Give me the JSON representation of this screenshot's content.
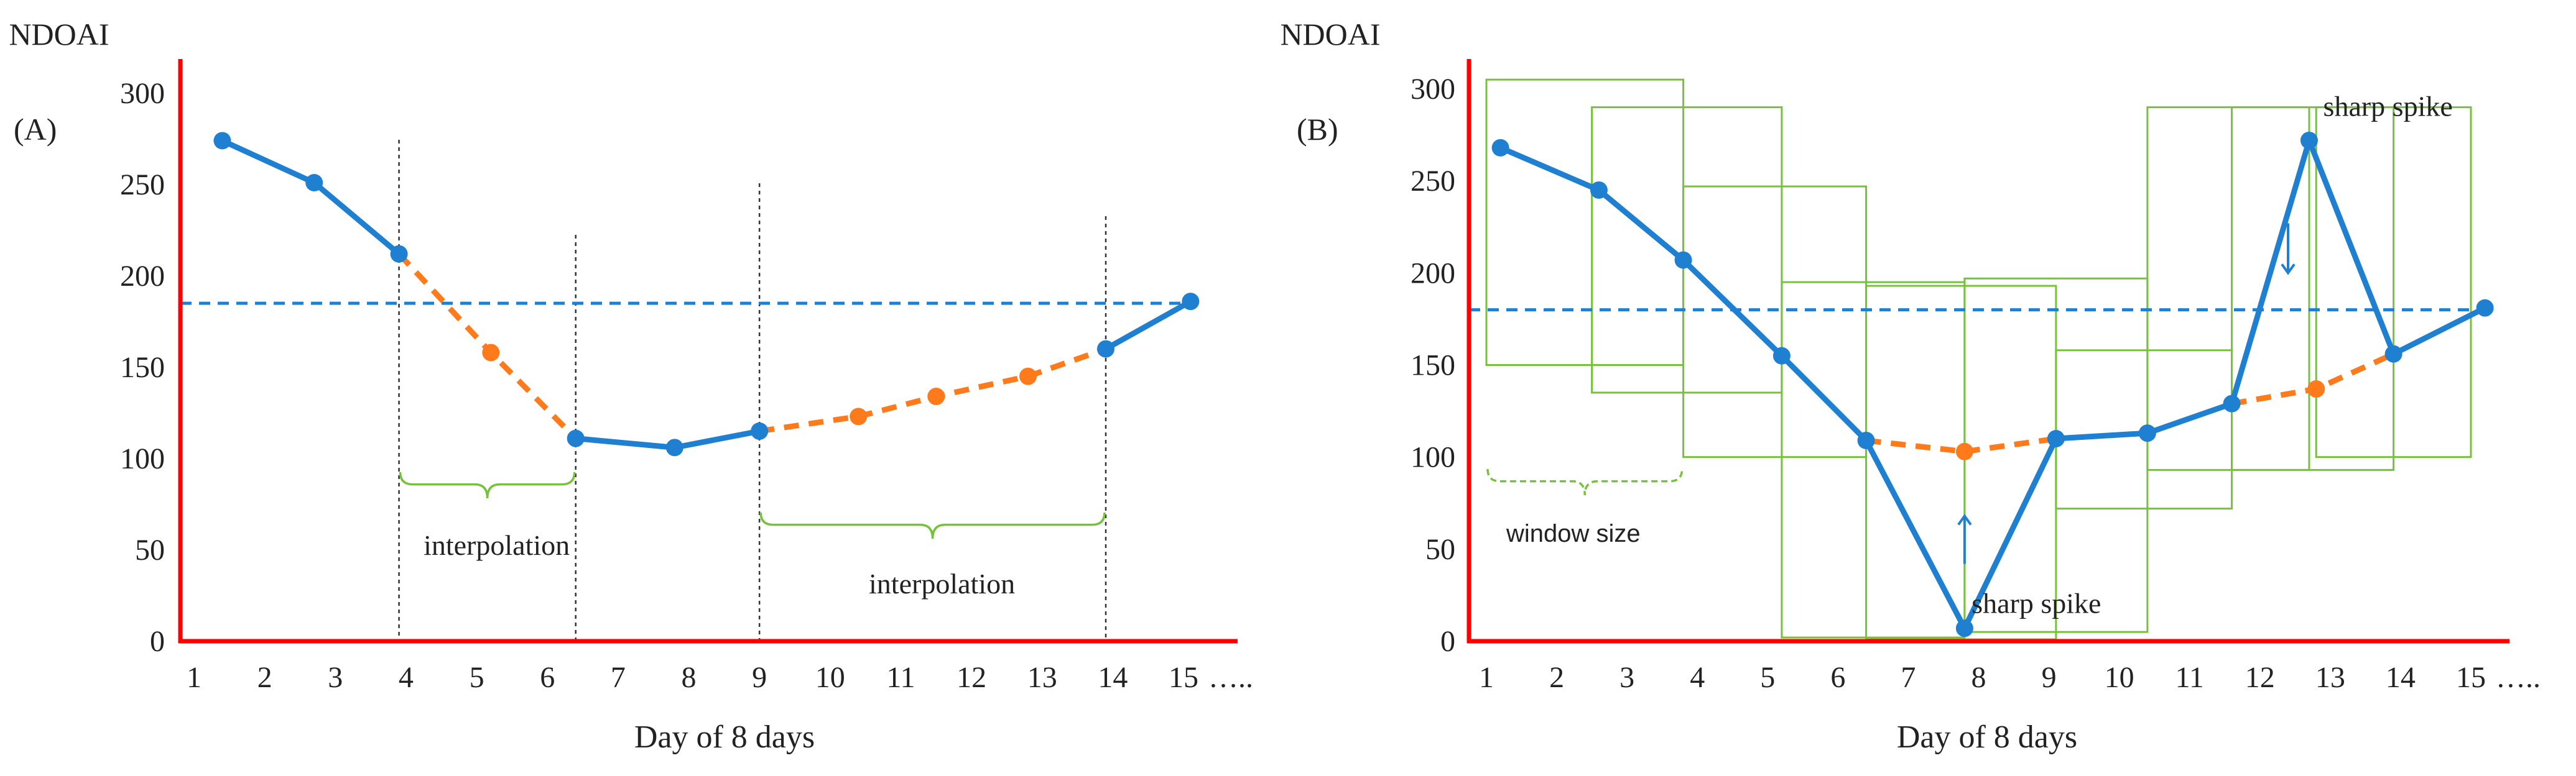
{
  "colors": {
    "axis": "#ff0000",
    "blue": "#1f7fd1",
    "orange": "#ff7a1a",
    "green": "#76c23a",
    "text": "#222222",
    "guide": "#333333"
  },
  "chart_data": [
    {
      "type": "line",
      "panel_label": "(A)",
      "ylabel": "NDOAI",
      "xlabel": "Day of 8 days",
      "ylim": [
        0,
        300
      ],
      "yticks": [
        "0",
        "50",
        "100",
        "150",
        "200",
        "250",
        "300"
      ],
      "xticks": [
        "1",
        "2",
        "3",
        "4",
        "5",
        "6",
        "7",
        "8",
        "9",
        "10",
        "11",
        "12",
        "13",
        "14",
        "15"
      ],
      "x_ellipsis": "…..",
      "threshold": 185,
      "series": [
        {
          "name": "observed",
          "color": "blue",
          "segments": [
            [
              [
                1.4,
                274
              ],
              [
                2.7,
                251
              ],
              [
                3.9,
                212
              ]
            ],
            [
              [
                6.4,
                111
              ],
              [
                7.8,
                106
              ],
              [
                9.0,
                115
              ]
            ],
            [
              [
                13.9,
                160
              ],
              [
                15.1,
                186
              ]
            ]
          ]
        },
        {
          "name": "interpolated",
          "color": "orange",
          "dashed": true,
          "segments": [
            [
              [
                3.9,
                212
              ],
              [
                5.2,
                158
              ],
              [
                6.4,
                111
              ]
            ],
            [
              [
                9.0,
                115
              ],
              [
                10.4,
                123
              ],
              [
                11.5,
                134
              ],
              [
                12.8,
                145
              ],
              [
                13.9,
                160
              ]
            ]
          ],
          "markers": [
            [
              5.2,
              158
            ],
            [
              10.4,
              123
            ],
            [
              11.5,
              134
            ],
            [
              12.8,
              145
            ]
          ]
        }
      ],
      "guides": [
        3.9,
        6.4,
        9.0,
        13.9
      ],
      "annotations": [
        {
          "text": "interpolation",
          "from": 3.9,
          "to": 6.4,
          "level": 1
        },
        {
          "text": "interpolation",
          "from": 9.0,
          "to": 13.9,
          "level": 2
        }
      ]
    },
    {
      "type": "line",
      "panel_label": "(B)",
      "ylabel": "NDOAI",
      "xlabel": "Day of 8 days",
      "ylim": [
        0,
        300
      ],
      "yticks": [
        "0",
        "50",
        "100",
        "150",
        "200",
        "250",
        "300"
      ],
      "xticks": [
        "1",
        "2",
        "3",
        "4",
        "5",
        "6",
        "7",
        "8",
        "9",
        "10",
        "11",
        "12",
        "13",
        "14",
        "15"
      ],
      "x_ellipsis": "…..",
      "threshold": 180,
      "series": [
        {
          "name": "observed",
          "color": "blue",
          "segments": [
            [
              [
                1.2,
                268
              ],
              [
                2.6,
                245
              ],
              [
                3.8,
                207
              ],
              [
                5.2,
                155
              ],
              [
                6.4,
                109
              ],
              [
                7.8,
                7
              ],
              [
                9.1,
                110
              ],
              [
                10.4,
                113
              ],
              [
                11.6,
                129
              ],
              [
                12.7,
                272
              ],
              [
                13.9,
                156
              ],
              [
                15.2,
                181
              ]
            ]
          ]
        },
        {
          "name": "corrected",
          "color": "orange",
          "dashed": true,
          "segments": [
            [
              [
                6.4,
                109
              ],
              [
                7.8,
                103
              ],
              [
                9.1,
                110
              ]
            ],
            [
              [
                11.6,
                129
              ],
              [
                12.8,
                137
              ],
              [
                13.9,
                156
              ]
            ]
          ],
          "markers": [
            [
              7.8,
              103
            ],
            [
              12.8,
              137
            ]
          ]
        }
      ],
      "windows": [
        {
          "x0": 1.0,
          "x1": 3.8,
          "y0": 150,
          "y1": 305
        },
        {
          "x0": 2.5,
          "x1": 5.2,
          "y0": 135,
          "y1": 290
        },
        {
          "x0": 3.8,
          "x1": 6.4,
          "y0": 100,
          "y1": 247
        },
        {
          "x0": 5.2,
          "x1": 7.8,
          "y0": 2,
          "y1": 195
        },
        {
          "x0": 6.4,
          "x1": 9.1,
          "y0": 1,
          "y1": 193
        },
        {
          "x0": 7.8,
          "x1": 10.4,
          "y0": 5,
          "y1": 197
        },
        {
          "x0": 9.1,
          "x1": 11.6,
          "y0": 72,
          "y1": 158
        },
        {
          "x0": 10.4,
          "x1": 12.7,
          "y0": 93,
          "y1": 290
        },
        {
          "x0": 11.6,
          "x1": 13.9,
          "y0": 93,
          "y1": 290
        },
        {
          "x0": 12.8,
          "x1": 15.0,
          "y0": 100,
          "y1": 290
        }
      ],
      "window_annotation": {
        "text": "window size",
        "from": 1.0,
        "to": 3.8,
        "y": 95
      },
      "annotations": [
        {
          "text": "sharp spike",
          "x": 7.9,
          "y": 20,
          "arrow": "up",
          "arrow_x": 7.8,
          "arrow_y0": 42,
          "arrow_y1": 68
        },
        {
          "text": "sharp spike",
          "x": 12.9,
          "y": 290,
          "arrow": "down",
          "arrow_x": 12.4,
          "arrow_y0": 227,
          "arrow_y1": 200
        }
      ]
    }
  ]
}
